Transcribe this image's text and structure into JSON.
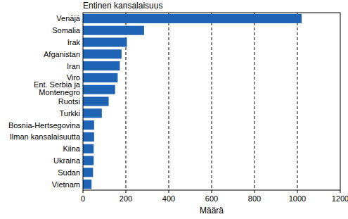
{
  "chart_data": {
    "type": "bar",
    "orientation": "horizontal",
    "title": "Entinen kansalaisuus",
    "x_label": "Määrä",
    "categories": [
      "Venäjä",
      "Somalia",
      "Irak",
      "Afganistan",
      "Iran",
      "Viro",
      "Ent. Serbia ja\nMontenegro",
      "Ruotsi",
      "Turkki",
      "Bosnia-Hertsegovina",
      "Ilman kansalaisuutta",
      "Kiina",
      "Ukraina",
      "Sudan",
      "Vietnam"
    ],
    "values": [
      1020,
      285,
      205,
      180,
      172,
      162,
      150,
      120,
      88,
      52,
      52,
      50,
      50,
      47,
      40
    ],
    "color": "#1f64b4",
    "ylim": [
      0,
      1200
    ],
    "yticks": [
      0,
      200,
      400,
      600,
      800,
      1000,
      1200
    ],
    "grid": true
  }
}
